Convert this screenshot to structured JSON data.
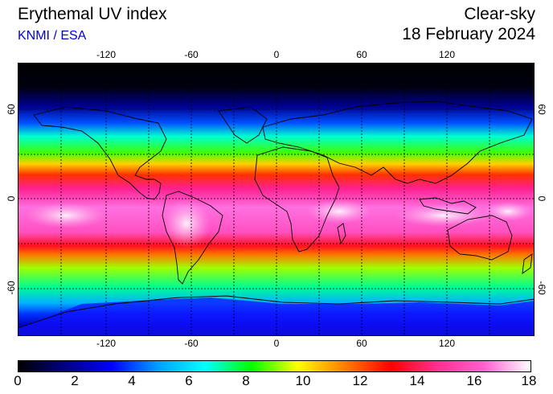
{
  "header": {
    "title": "Erythemal UV index",
    "source": "KNMI / ESA",
    "condition": "Clear-sky",
    "date": "18 February 2024"
  },
  "map": {
    "lon_ticks": [
      "-120",
      "-60",
      "0",
      "60",
      "120"
    ],
    "lat_ticks": [
      "60",
      "0",
      "-60"
    ]
  },
  "colorbar": {
    "labels": [
      "0",
      "2",
      "4",
      "6",
      "8",
      "10",
      "12",
      "14",
      "16",
      "18"
    ],
    "min": 0,
    "max": 18,
    "colors": [
      "#000000",
      "#000080",
      "#0000ff",
      "#00a0ff",
      "#00ffff",
      "#00ff00",
      "#ffff00",
      "#ff8000",
      "#ff0000",
      "#ff3090",
      "#ff60d0",
      "#ffffff"
    ]
  }
}
